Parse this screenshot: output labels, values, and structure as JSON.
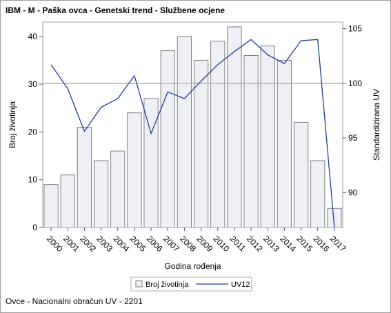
{
  "title": "IBM - M - Paška ovca - Genetski trend - Službene ocjene",
  "footnote": "Ovce - Nacionalni obračun UV - 2201",
  "chart_data": {
    "type": "bar",
    "xlabel": "Godina rođenja",
    "ylabel": "Broj životinja",
    "y2label": "Standardizirana UV",
    "categories": [
      "2000",
      "2001",
      "2002",
      "2003",
      "2004",
      "2005",
      "2006",
      "2007",
      "2008",
      "2009",
      "2010",
      "2011",
      "2012",
      "2013",
      "2014",
      "2015",
      "2016",
      "2017"
    ],
    "ylim": [
      0,
      43
    ],
    "yticks": [
      0,
      10,
      20,
      30,
      40
    ],
    "y2lim": [
      86.8,
      105.6
    ],
    "y2ticks": [
      90,
      95,
      100,
      105
    ],
    "reference_line_y2": 100,
    "grid": false,
    "legend_position": "bottom",
    "series": [
      {
        "name": "Broj životinja",
        "type": "bar",
        "axis": "left",
        "color": "#eef0f5",
        "values": [
          9,
          11,
          21,
          14,
          16,
          24,
          27,
          37,
          40,
          35,
          39,
          42,
          36,
          38,
          35,
          22,
          14,
          4
        ]
      },
      {
        "name": "UV12",
        "type": "line",
        "axis": "right",
        "color": "#1f3c99",
        "values": [
          101.7,
          99.5,
          95.6,
          97.8,
          98.6,
          100.7,
          95.4,
          99.2,
          98.6,
          100.2,
          101.7,
          102.9,
          104.0,
          102.6,
          101.8,
          103.9,
          104.0,
          86.8
        ]
      }
    ]
  }
}
